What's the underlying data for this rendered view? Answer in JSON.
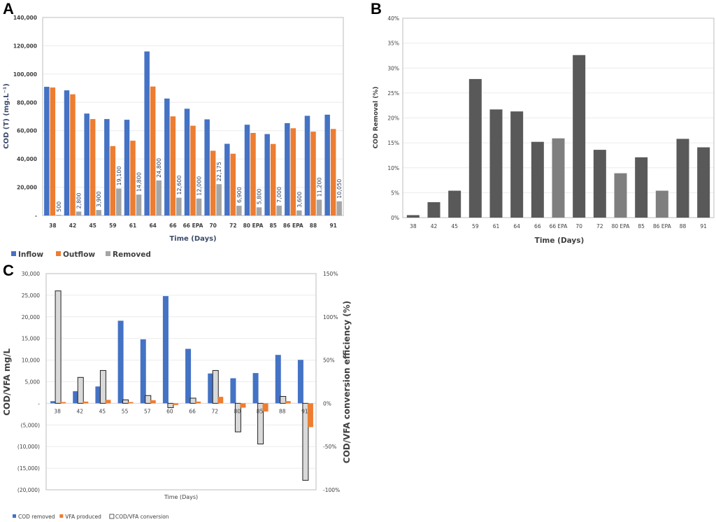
{
  "panels": {
    "A": "A",
    "B": "B",
    "C": "C"
  },
  "chart_data": [
    {
      "id": "A",
      "type": "bar",
      "title": "",
      "xlabel": "Time (Days)",
      "ylabel": "COD (T) (mg.L⁻¹)",
      "ylim": [
        0,
        140000
      ],
      "yticks": [
        0,
        20000,
        40000,
        60000,
        80000,
        100000,
        120000,
        140000
      ],
      "ytick_labels": [
        "-",
        "20,000",
        "40,000",
        "60,000",
        "80,000",
        "100,000",
        "120,000",
        "140,000"
      ],
      "grid": true,
      "legend_position": "bottom-left",
      "categories": [
        "38",
        "42",
        "45",
        "59",
        "61",
        "64",
        "66",
        "66 EPA",
        "70",
        "72",
        "80 EPA",
        "85",
        "86 EPA",
        "88",
        "91"
      ],
      "series": [
        {
          "name": "Inflow",
          "color": "#4472c4",
          "values": [
            91000,
            88500,
            72100,
            68200,
            67700,
            116000,
            82700,
            75500,
            68000,
            50700,
            64200,
            57600,
            65300,
            70500,
            71300
          ]
        },
        {
          "name": "Outflow",
          "color": "#ed7d31",
          "values": [
            90500,
            85700,
            68200,
            49100,
            52900,
            91200,
            70100,
            63500,
            45800,
            43700,
            58400,
            50600,
            61700,
            59300,
            61200
          ]
        },
        {
          "name": "Removed",
          "color": "#a5a5a5",
          "values": [
            500,
            2800,
            3900,
            19100,
            14800,
            24800,
            12600,
            12000,
            22175,
            6900,
            5800,
            7000,
            3600,
            11200,
            10050
          ],
          "data_labels": [
            "500",
            "2,800",
            "3,900",
            "19,100",
            "14,800",
            "24,800",
            "12,600",
            "12,000",
            "22,175",
            "6,900",
            "5,800",
            "7,000",
            "3,600",
            "11,200",
            "10,050"
          ]
        }
      ]
    },
    {
      "id": "B",
      "type": "bar",
      "title": "",
      "xlabel": "Time (Days)",
      "ylabel": "COD Removal (%)",
      "ylim": [
        0,
        40
      ],
      "yticks": [
        0,
        5,
        10,
        15,
        20,
        25,
        30,
        35,
        40
      ],
      "ytick_labels": [
        "0%",
        "5%",
        "10%",
        "15%",
        "20%",
        "25%",
        "30%",
        "35%",
        "40%"
      ],
      "grid": true,
      "categories": [
        "38",
        "42",
        "45",
        "59",
        "61",
        "64",
        "66",
        "66 EPA",
        "70",
        "72",
        "80 EPA",
        "85",
        "86 EPA",
        "88",
        "91"
      ],
      "values": [
        0.5,
        3.1,
        5.4,
        27.8,
        21.7,
        21.3,
        15.2,
        15.9,
        32.6,
        13.6,
        8.9,
        12.1,
        5.4,
        15.8,
        14.1
      ],
      "colors": {
        "regular": "#595959",
        "epa": "#7f7f7f"
      }
    },
    {
      "id": "C",
      "type": "bar",
      "title": "",
      "xlabel": "Time (Days)",
      "ylabel": "COD/VFA mg/L",
      "y2label": "COD/VFA conversion efficiency (%)",
      "ylim": [
        -20000,
        30000
      ],
      "y2lim": [
        -100,
        150
      ],
      "yticks": [
        -20000,
        -15000,
        -10000,
        -5000,
        0,
        5000,
        10000,
        15000,
        20000,
        25000,
        30000
      ],
      "ytick_labels": [
        "(20,000)",
        "(15,000)",
        "(10,000)",
        "(5,000)",
        "-",
        "5,000",
        "10,000",
        "15,000",
        "20,000",
        "25,000",
        "30,000"
      ],
      "y2ticks": [
        -100,
        -50,
        0,
        50,
        100,
        150
      ],
      "y2tick_labels": [
        "-100%",
        "-50%",
        "0%",
        "50%",
        "100%",
        "150%"
      ],
      "grid": true,
      "legend_position": "bottom-left",
      "categories": [
        "38",
        "42",
        "45",
        "55",
        "57",
        "60",
        "66",
        "72",
        "80",
        "85",
        "88",
        "91"
      ],
      "series": [
        {
          "name": "COD removed",
          "axis": "left",
          "color": "#4472c4",
          "values": [
            500,
            2800,
            3900,
            19100,
            14800,
            24800,
            12600,
            6900,
            5800,
            7000,
            11200,
            10050
          ]
        },
        {
          "name": "VFA produced",
          "axis": "left",
          "color": "#ed7d31",
          "values": [
            300,
            400,
            800,
            300,
            700,
            -400,
            400,
            1500,
            -1000,
            -1900,
            500,
            -5500
          ]
        },
        {
          "name": "COD/VFA conversion",
          "axis": "right",
          "color": "#d9d9d9",
          "values": [
            130,
            30,
            38,
            4,
            9,
            -5,
            6,
            38,
            -33,
            -47,
            8,
            -89
          ]
        }
      ]
    }
  ]
}
